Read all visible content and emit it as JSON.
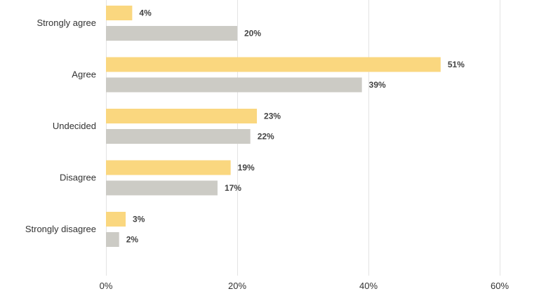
{
  "chart_data": {
    "type": "bar",
    "orientation": "horizontal",
    "categories": [
      "Strongly agree",
      "Agree",
      "Undecided",
      "Disagree",
      "Strongly disagree"
    ],
    "series": [
      {
        "values": [
          4,
          51,
          23,
          19,
          3
        ],
        "labels": [
          "4%",
          "51%",
          "23%",
          "19%",
          "3%"
        ],
        "color": "#fad77f"
      },
      {
        "values": [
          20,
          39,
          22,
          17,
          2
        ],
        "labels": [
          "20%",
          "39%",
          "22%",
          "17%",
          "2%"
        ],
        "color": "#cccbc5"
      }
    ],
    "xlim": [
      0,
      60
    ],
    "x_ticks": [
      0,
      20,
      40,
      60
    ],
    "x_tick_labels": [
      "0%",
      "20%",
      "40%",
      "60%"
    ],
    "grid": true,
    "legend": "none"
  }
}
